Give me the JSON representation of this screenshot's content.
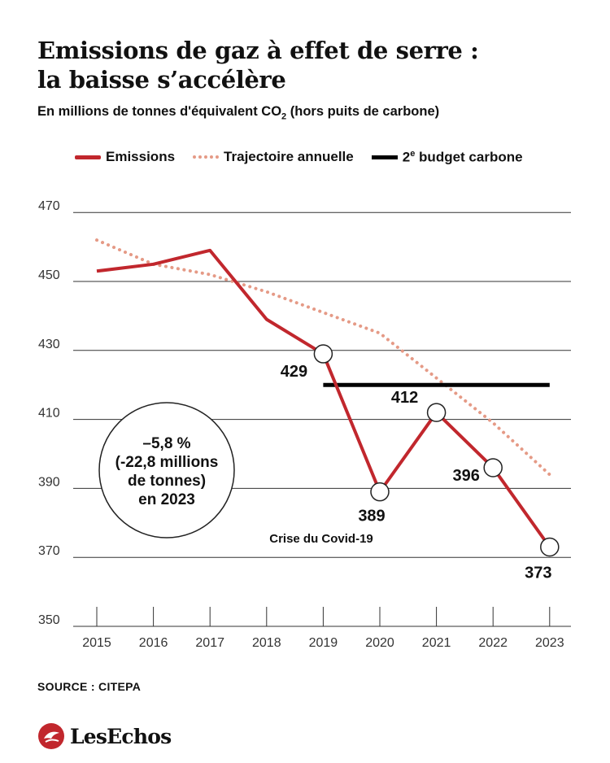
{
  "title_line1": "Emissions de gaz à effet de serre :",
  "title_line2": "la baisse s’accélère",
  "subtitle": "En millions de tonnes d'équivalent CO",
  "subtitle_sub": "2",
  "subtitle_tail": " (hors puits de carbone)",
  "legend": {
    "emissions": "Emissions",
    "trajectory": "Trajectoire annuelle",
    "budget_num": "2",
    "budget_sup": "e",
    "budget_tail": " budget carbone"
  },
  "source": "SOURCE : CITEPA",
  "logo_text": "LesEchos",
  "colors": {
    "emissions": "#c1272d",
    "trajectory": "#e59a86",
    "budget": "#000000",
    "grid": "#333333"
  },
  "chart_data": {
    "type": "line",
    "x": [
      2015,
      2016,
      2017,
      2018,
      2019,
      2020,
      2021,
      2022,
      2023
    ],
    "series": [
      {
        "name": "Emissions",
        "values": [
          453,
          455,
          459,
          439,
          429,
          389,
          412,
          396,
          373
        ]
      },
      {
        "name": "Trajectoire annuelle",
        "values": [
          462,
          455,
          452,
          447,
          441,
          435,
          422,
          409,
          394
        ]
      }
    ],
    "budget": {
      "name": "2e budget carbone",
      "value": 420,
      "from": 2019,
      "to": 2023
    },
    "ylim": [
      350,
      470
    ],
    "yticks": [
      350,
      370,
      390,
      410,
      430,
      450,
      470
    ],
    "point_labels": [
      {
        "year": 2019,
        "text": "429"
      },
      {
        "year": 2020,
        "text": "389"
      },
      {
        "year": 2021,
        "text": "412"
      },
      {
        "year": 2022,
        "text": "396"
      },
      {
        "year": 2023,
        "text": "373"
      }
    ],
    "annotation_circle": {
      "lines": [
        "–5,8 %",
        "(-22,8 millions",
        "de tonnes)",
        "en 2023"
      ]
    },
    "annotation_covid": "Crise du Covid-19",
    "grid": true
  }
}
